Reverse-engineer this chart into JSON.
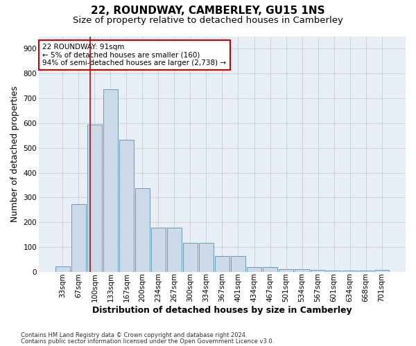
{
  "title1": "22, ROUNDWAY, CAMBERLEY, GU15 1NS",
  "title2": "Size of property relative to detached houses in Camberley",
  "xlabel": "Distribution of detached houses by size in Camberley",
  "ylabel": "Number of detached properties",
  "footnote1": "Contains HM Land Registry data © Crown copyright and database right 2024.",
  "footnote2": "Contains public sector information licensed under the Open Government Licence v3.0.",
  "bar_labels": [
    "33sqm",
    "67sqm",
    "100sqm",
    "133sqm",
    "167sqm",
    "200sqm",
    "234sqm",
    "267sqm",
    "300sqm",
    "334sqm",
    "367sqm",
    "401sqm",
    "434sqm",
    "467sqm",
    "501sqm",
    "534sqm",
    "567sqm",
    "601sqm",
    "634sqm",
    "668sqm",
    "701sqm"
  ],
  "bar_values": [
    22,
    272,
    593,
    736,
    533,
    338,
    178,
    178,
    118,
    118,
    65,
    65,
    20,
    20,
    12,
    10,
    8,
    5,
    5,
    5,
    8
  ],
  "bar_color": "#ccd9e8",
  "bar_edge_color": "#6699bb",
  "grid_color": "#cccccc",
  "bg_color": "#e8eef5",
  "annotation_text": "22 ROUNDWAY: 91sqm\n← 5% of detached houses are smaller (160)\n94% of semi-detached houses are larger (2,738) →",
  "vline_x": 1.72,
  "ylim": [
    0,
    950
  ],
  "yticks": [
    0,
    100,
    200,
    300,
    400,
    500,
    600,
    700,
    800,
    900
  ],
  "annotation_box_color": "#ffffff",
  "annotation_box_edge": "#cc0000",
  "vline_color": "#cc0000",
  "title1_fontsize": 11,
  "title2_fontsize": 9.5,
  "xlabel_fontsize": 9,
  "ylabel_fontsize": 9,
  "tick_fontsize": 7.5,
  "annotation_fontsize": 7.5,
  "footnote_fontsize": 6
}
